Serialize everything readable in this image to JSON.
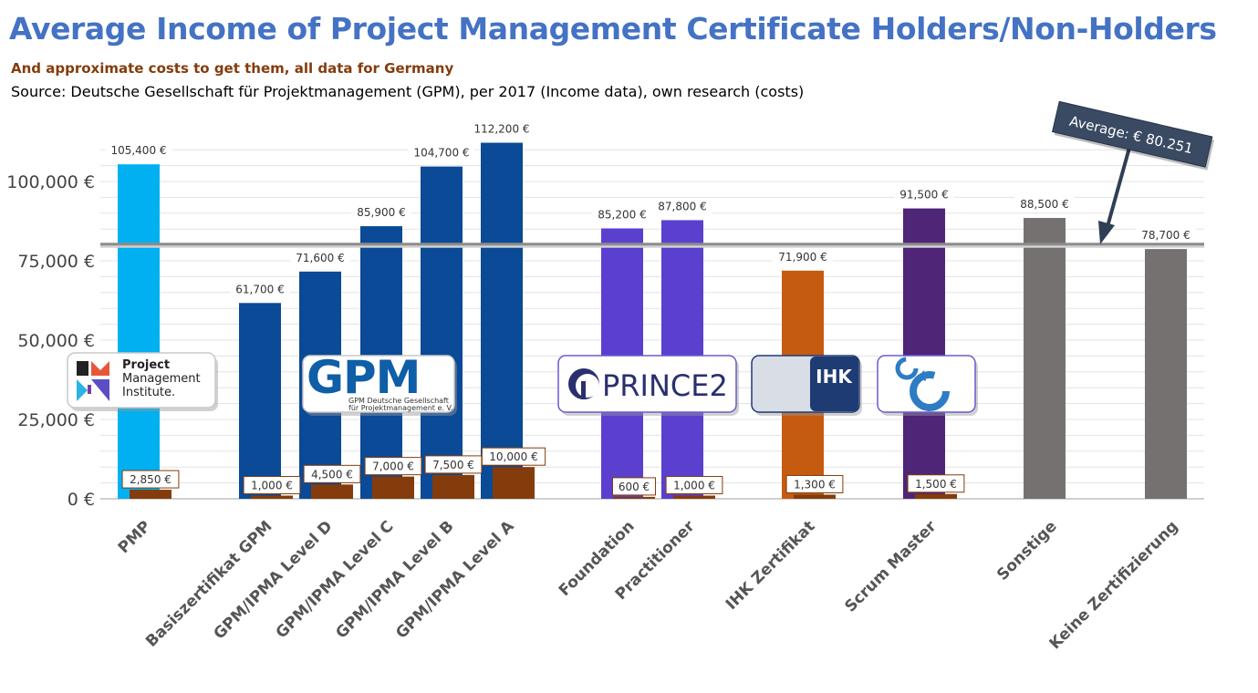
{
  "header": {
    "title": "Average Income of Project Management Certificate Holders/Non-Holders",
    "subtitle": "And approximate costs to get them, all data for Germany",
    "source": "Source: Deutsche Gesellschaft für Projektmanagement (GPM), per 2017 (Income data), own research (costs)"
  },
  "chart_data": {
    "type": "bar",
    "title": "Average Income of Project Management Certificate Holders/Non-Holders",
    "categories": [
      "PMP",
      "Basiszertifikat GPM",
      "GPM/IPMA Level D",
      "GPM/IPMA Level C",
      "GPM/IPMA Level B",
      "GPM/IPMA Level A",
      "Foundation",
      "Practitioner",
      "IHK Zertifikat",
      "Scrum Master",
      "Sonstige",
      "Keine Zertifizierung"
    ],
    "series": [
      {
        "values": [
          105400,
          61700,
          71600,
          85900,
          104700,
          112200,
          85200,
          87800,
          71900,
          91500,
          88500,
          78700
        ],
        "labels": [
          "105,400 €",
          "61,700 €",
          "71,600 €",
          "85,900 €",
          "104,700 €",
          "112,200 €",
          "85,200 €",
          "87,800 €",
          "71,900 €",
          "91,500 €",
          "88,500 €",
          "78,700 €"
        ]
      },
      {
        "values": [
          2850,
          1000,
          4500,
          7000,
          7500,
          10000,
          600,
          1000,
          1300,
          1500,
          null,
          null
        ],
        "labels": [
          "2,850 €",
          "1,000 €",
          "4,500 €",
          "7,000 €",
          "7,500 €",
          "10,000 €",
          "600 €",
          "1,000 €",
          "1,300 €",
          "1,500 €",
          "",
          ""
        ]
      }
    ],
    "colors": {
      "income": [
        "#00b0f0",
        "#0a4a96",
        "#0a4a96",
        "#0a4a96",
        "#0a4a96",
        "#0a4a96",
        "#5b3fce",
        "#5b3fce",
        "#c55a11",
        "#4e2577",
        "#767171",
        "#767171"
      ],
      "cost": "#843c0c"
    },
    "yticks": [
      0,
      25000,
      50000,
      75000,
      100000
    ],
    "ytick_labels": [
      "0 €",
      "25,000 €",
      "50,000 €",
      "75,000 €",
      "100,000 €"
    ],
    "ylim": [
      0,
      115000
    ],
    "average": {
      "value": 80251,
      "label": "Average: € 80.251"
    },
    "grid": true,
    "logos": [
      {
        "name": "pmi",
        "lines": [
          "Project",
          "Management",
          "Institute."
        ],
        "mark": "PM"
      },
      {
        "name": "gpm",
        "lines": [
          "GPM Deutsche Gesellschaft",
          "für Projektmanagement e. V."
        ],
        "mark": "GPM"
      },
      {
        "name": "prince2",
        "lines": [
          "PRINCE2"
        ]
      },
      {
        "name": "ihk",
        "lines": [
          "IHK"
        ]
      },
      {
        "name": "scrum",
        "lines": []
      }
    ]
  }
}
